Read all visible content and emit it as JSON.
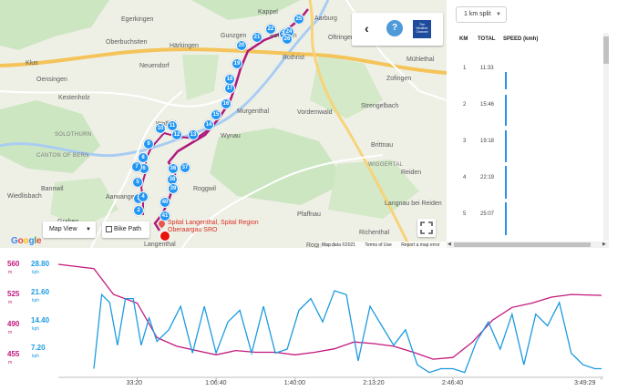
{
  "map": {
    "places": [
      {
        "text": "Egerkingen",
        "x": 133,
        "y": 18
      },
      {
        "text": "Kappel",
        "x": 283,
        "y": 10
      },
      {
        "text": "Oberbuchsiten",
        "x": 116,
        "y": 43
      },
      {
        "text": "Härkingen",
        "x": 186,
        "y": 47
      },
      {
        "text": "Gunzgen",
        "x": 242,
        "y": 36
      },
      {
        "text": "Boningen",
        "x": 296,
        "y": 36
      },
      {
        "text": "Aarburg",
        "x": 345,
        "y": 17
      },
      {
        "text": "Oftringen",
        "x": 360,
        "y": 38
      },
      {
        "text": "Mühlethal",
        "x": 446,
        "y": 62
      },
      {
        "text": "Neuendorf",
        "x": 153,
        "y": 69
      },
      {
        "text": "Rothrist",
        "x": 310,
        "y": 60
      },
      {
        "text": "Oensingen",
        "x": 40,
        "y": 84
      },
      {
        "text": "Kestenholz",
        "x": 64,
        "y": 104
      },
      {
        "text": "Murgenthal",
        "x": 260,
        "y": 119
      },
      {
        "text": "Vordemwald",
        "x": 326,
        "y": 120
      },
      {
        "text": "Zofingen",
        "x": 424,
        "y": 83
      },
      {
        "text": "Strengelbach",
        "x": 396,
        "y": 113
      },
      {
        "text": "Wolfwil",
        "x": 171,
        "y": 133
      },
      {
        "text": "Wynau",
        "x": 242,
        "y": 146
      },
      {
        "text": "Brittnau",
        "x": 407,
        "y": 156
      },
      {
        "text": "Reiden",
        "x": 440,
        "y": 186
      },
      {
        "text": "Bannwil",
        "x": 45,
        "y": 204
      },
      {
        "text": "Aarwangen",
        "x": 116,
        "y": 213
      },
      {
        "text": "Roggwil",
        "x": 212,
        "y": 204
      },
      {
        "text": "Langnau bei Reiden",
        "x": 422,
        "y": 220
      },
      {
        "text": "Pfaffnau",
        "x": 326,
        "y": 232
      },
      {
        "text": "Graben",
        "x": 63,
        "y": 240
      },
      {
        "text": "Richenthal",
        "x": 394,
        "y": 252
      },
      {
        "text": "Langenthal",
        "x": 158,
        "y": 265
      },
      {
        "text": "Roggliswil",
        "x": 336,
        "y": 266
      },
      {
        "text": "Klus",
        "x": 28,
        "y": 66
      },
      {
        "text": "Wiedlisbach",
        "x": 8,
        "y": 212
      }
    ],
    "region_labels": [
      {
        "text": "SOLOTHURN",
        "x": 60,
        "y": 145
      },
      {
        "text": "CANTON OF BERN",
        "x": 40,
        "y": 168
      },
      {
        "text": "WIGGERTAL",
        "x": 404,
        "y": 178
      }
    ],
    "markers": [
      {
        "n": "2",
        "x": 152,
        "y": 231
      },
      {
        "n": "3",
        "x": 152,
        "y": 218
      },
      {
        "n": "4",
        "x": 157,
        "y": 216
      },
      {
        "n": "5",
        "x": 151,
        "y": 200
      },
      {
        "n": "6",
        "x": 158,
        "y": 185
      },
      {
        "n": "7",
        "x": 150,
        "y": 183
      },
      {
        "n": "8",
        "x": 157,
        "y": 173
      },
      {
        "n": "9",
        "x": 163,
        "y": 158
      },
      {
        "n": "10",
        "x": 176,
        "y": 141
      },
      {
        "n": "11",
        "x": 189,
        "y": 138
      },
      {
        "n": "12",
        "x": 194,
        "y": 148
      },
      {
        "n": "13",
        "x": 212,
        "y": 148
      },
      {
        "n": "14",
        "x": 229,
        "y": 137
      },
      {
        "n": "15",
        "x": 237,
        "y": 126
      },
      {
        "n": "16",
        "x": 248,
        "y": 114
      },
      {
        "n": "17",
        "x": 252,
        "y": 97
      },
      {
        "n": "18",
        "x": 252,
        "y": 87
      },
      {
        "n": "19",
        "x": 260,
        "y": 70
      },
      {
        "n": "20",
        "x": 265,
        "y": 50
      },
      {
        "n": "21",
        "x": 282,
        "y": 41
      },
      {
        "n": "22",
        "x": 297,
        "y": 32
      },
      {
        "n": "23",
        "x": 312,
        "y": 37
      },
      {
        "n": "24",
        "x": 317,
        "y": 35
      },
      {
        "n": "25",
        "x": 328,
        "y": 21
      },
      {
        "n": "26",
        "x": 315,
        "y": 43
      },
      {
        "n": "36",
        "x": 190,
        "y": 185
      },
      {
        "n": "37",
        "x": 203,
        "y": 184
      },
      {
        "n": "38",
        "x": 189,
        "y": 197
      },
      {
        "n": "39",
        "x": 190,
        "y": 207
      },
      {
        "n": "40",
        "x": 181,
        "y": 222
      },
      {
        "n": "41",
        "x": 181,
        "y": 237
      }
    ],
    "poi_label": "Spital Langenthal, Spital Region Oberaargau SRO",
    "map_view_label": "Map View",
    "bike_path_label": "Bike Path",
    "google_label": "Google",
    "attribution": [
      "Map data ©2021",
      "Terms of Use",
      "Report a map error"
    ],
    "weather": {
      "back_icon": "‹",
      "help_icon": "?",
      "brand": "The Weather Channel"
    }
  },
  "splits": {
    "dropdown_value": "1 km split",
    "headers": {
      "km": "KM",
      "total": "TOTAL",
      "speed": "SPEED (kmh)"
    },
    "rows": [
      {
        "km": "1",
        "total": "11:33",
        "speed_fraction": 0.52
      },
      {
        "km": "2",
        "total": "15:46",
        "speed_fraction": 0.95
      },
      {
        "km": "3",
        "total": "19:18",
        "speed_fraction": 0.98
      },
      {
        "km": "4",
        "total": "22:19",
        "speed_fraction": 1.0
      },
      {
        "km": "5",
        "total": "25:07",
        "speed_fraction": 1.0
      }
    ]
  },
  "chart_data": {
    "type": "line",
    "x_tick_labels": [
      "33:20",
      "1:06:40",
      "1:40:00",
      "2:13:20",
      "2:46:40",
      "3:49:29"
    ],
    "x_ticks_seconds": [
      2000,
      4000,
      6000,
      8000,
      10000,
      13769
    ],
    "xlim_seconds": [
      0,
      13769
    ],
    "elevation": {
      "unit": "m",
      "color": "#c2187d",
      "ticks": [
        "560",
        "525",
        "490",
        "455"
      ],
      "tick_values": [
        560,
        525,
        490,
        455
      ],
      "ylim": [
        430,
        560
      ],
      "x": [
        0,
        900,
        1400,
        2000,
        2500,
        3000,
        3500,
        4000,
        4500,
        5000,
        5500,
        6000,
        6500,
        7000,
        7500,
        8000,
        8500,
        9000,
        9500,
        10000,
        10500,
        11000,
        11500,
        12000,
        12500,
        13000,
        13769
      ],
      "values": [
        560,
        555,
        525,
        515,
        475,
        465,
        460,
        455,
        460,
        458,
        458,
        455,
        458,
        462,
        470,
        468,
        465,
        458,
        450,
        452,
        470,
        495,
        510,
        515,
        522,
        525,
        524
      ]
    },
    "speed": {
      "unit": "kph",
      "color": "#1c9be0",
      "ticks": [
        "28.80",
        "21.60",
        "14.40",
        "7.20"
      ],
      "tick_values": [
        28.8,
        21.6,
        14.4,
        7.2
      ],
      "ylim": [
        0,
        28.8
      ],
      "x": [
        900,
        1100,
        1300,
        1500,
        1700,
        1900,
        2100,
        2300,
        2500,
        2800,
        3100,
        3400,
        3700,
        4000,
        4300,
        4600,
        4900,
        5200,
        5500,
        5800,
        6100,
        6400,
        6700,
        7000,
        7300,
        7600,
        7900,
        8200,
        8500,
        8800,
        9100,
        9400,
        9700,
        10000,
        10300,
        10600,
        10900,
        11200,
        11500,
        11800,
        12100,
        12400,
        12700,
        13000,
        13300,
        13600,
        13769
      ],
      "values": [
        2,
        21,
        19,
        8,
        20,
        20,
        8,
        15,
        9,
        12,
        18,
        6,
        18,
        6,
        14,
        17,
        6,
        18,
        6,
        7,
        17,
        20,
        14,
        22,
        21,
        4,
        18,
        13,
        8,
        12,
        3,
        1,
        2,
        2,
        1,
        9,
        14,
        7,
        16,
        3,
        16,
        13,
        19,
        6,
        3,
        2,
        2
      ]
    }
  }
}
